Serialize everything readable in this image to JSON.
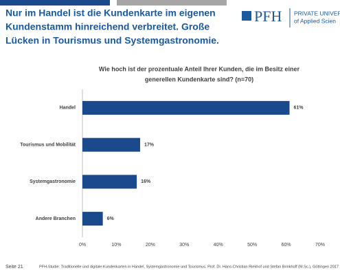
{
  "slide": {
    "title_lines": [
      "Nur im Handel ist die Kundenkarte im eigenen",
      "Kundenstamm hinreichend verbreitet. Große",
      "Lücken in Tourismus und Systemgastronomie."
    ],
    "logo": "PFH",
    "logo_line1": "PRIVATE UNIVERS",
    "logo_line2": "of Applied Scien",
    "page": "Seite 21",
    "source": "PFH-Studie: Traditionelle und digitale Kundenkarten in Handel, Systemgastronomie und Tourismus, Prof. Dr. Hans-Christian Riekhof und Stefan Brinkhoff (M.Sc.), Göttingen 2017"
  },
  "chart_data": {
    "type": "bar",
    "orientation": "horizontal",
    "title": [
      "Wie hoch ist der prozentuale Anteil Ihrer Kunden, die im Besitz einer",
      "generellen Kundenkarte sind? (n=70)"
    ],
    "categories": [
      "Handel",
      "Tourismus und Mobilität",
      "Systemgastronomie",
      "Andere Branchen"
    ],
    "values": [
      61,
      17,
      16,
      6
    ],
    "value_labels": [
      "61%",
      "17%",
      "16%",
      "6%"
    ],
    "color": "#1b4a8c",
    "xlim": [
      0,
      70
    ],
    "xticks": [
      {
        "value": 0,
        "label": "0%"
      },
      {
        "value": 10,
        "label": "10%"
      },
      {
        "value": 20,
        "label": "20%"
      },
      {
        "value": 30,
        "label": "30%"
      },
      {
        "value": 40,
        "label": "40%"
      },
      {
        "value": 50,
        "label": "50%"
      },
      {
        "value": 60,
        "label": "60%"
      },
      {
        "value": 70,
        "label": "70%"
      }
    ],
    "grid": false
  }
}
